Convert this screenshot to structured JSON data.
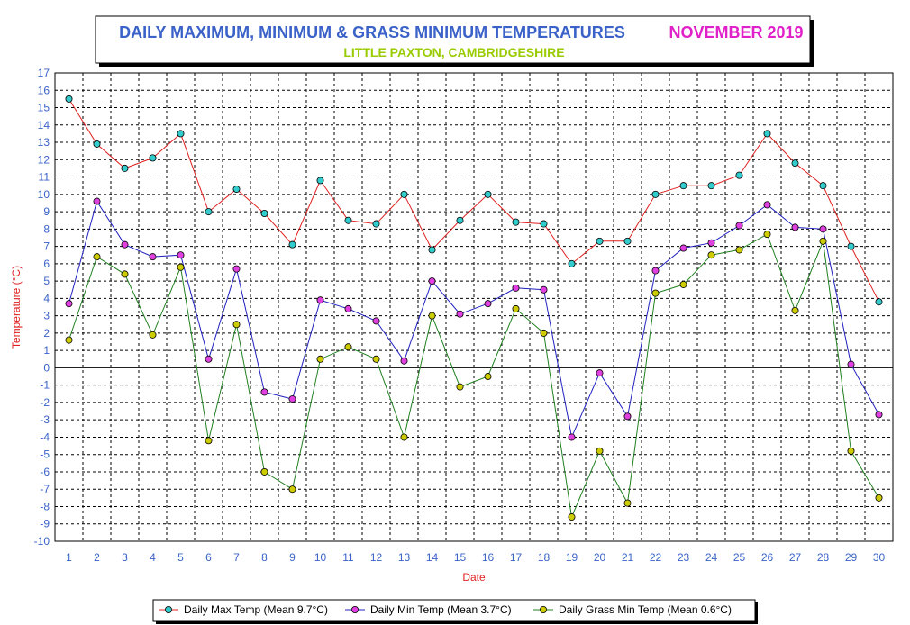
{
  "chart_data": {
    "type": "line",
    "title": "DAILY MAXIMUM, MINIMUM & GRASS MINIMUM TEMPERATURES",
    "title_month": "NOVEMBER 2019",
    "subtitle": "LITTLE PAXTON, CAMBRIDGESHIRE",
    "xlabel": "Date",
    "ylabel": "Temperature (°C)",
    "ylim": [
      -10,
      17
    ],
    "grid": true,
    "legend_position": "bottom",
    "x": [
      1,
      2,
      3,
      4,
      5,
      6,
      7,
      8,
      9,
      10,
      11,
      12,
      13,
      14,
      15,
      16,
      17,
      18,
      19,
      20,
      21,
      22,
      23,
      24,
      25,
      26,
      27,
      28,
      29,
      30
    ],
    "series": [
      {
        "name": "Daily Max Temp (Mean 9.7°C)",
        "line_color": "#e02020",
        "marker_color": "#33cccc",
        "values": [
          15.5,
          12.9,
          11.5,
          12.1,
          13.5,
          9.0,
          10.3,
          8.9,
          7.1,
          10.8,
          8.5,
          8.3,
          10.0,
          6.8,
          8.5,
          10.0,
          8.4,
          8.3,
          6.0,
          7.3,
          7.3,
          10.0,
          10.5,
          10.5,
          11.1,
          13.5,
          11.8,
          10.5,
          7.0,
          3.8
        ]
      },
      {
        "name": "Daily Min Temp (Mean 3.7°C)",
        "line_color": "#2020c0",
        "marker_color": "#e040e0",
        "values": [
          3.7,
          9.6,
          7.1,
          6.4,
          6.5,
          0.5,
          5.7,
          -1.4,
          -1.8,
          3.9,
          3.4,
          2.7,
          0.4,
          5.0,
          3.1,
          3.7,
          4.6,
          4.5,
          -4.0,
          -0.3,
          -2.8,
          5.6,
          6.9,
          7.2,
          8.2,
          9.4,
          8.1,
          8.0,
          0.2,
          -2.7
        ]
      },
      {
        "name": "Daily Grass Min Temp (Mean 0.6°C)",
        "line_color": "#208020",
        "marker_color": "#cccc00",
        "values": [
          1.6,
          6.4,
          5.4,
          1.9,
          5.8,
          -4.2,
          2.5,
          -6.0,
          -7.0,
          0.5,
          1.2,
          0.5,
          -4.0,
          3.0,
          -1.1,
          -0.5,
          3.4,
          2.0,
          -8.6,
          -4.8,
          -7.8,
          4.3,
          4.8,
          6.5,
          6.8,
          7.7,
          3.3,
          7.3,
          -4.8,
          -7.5
        ]
      }
    ]
  }
}
